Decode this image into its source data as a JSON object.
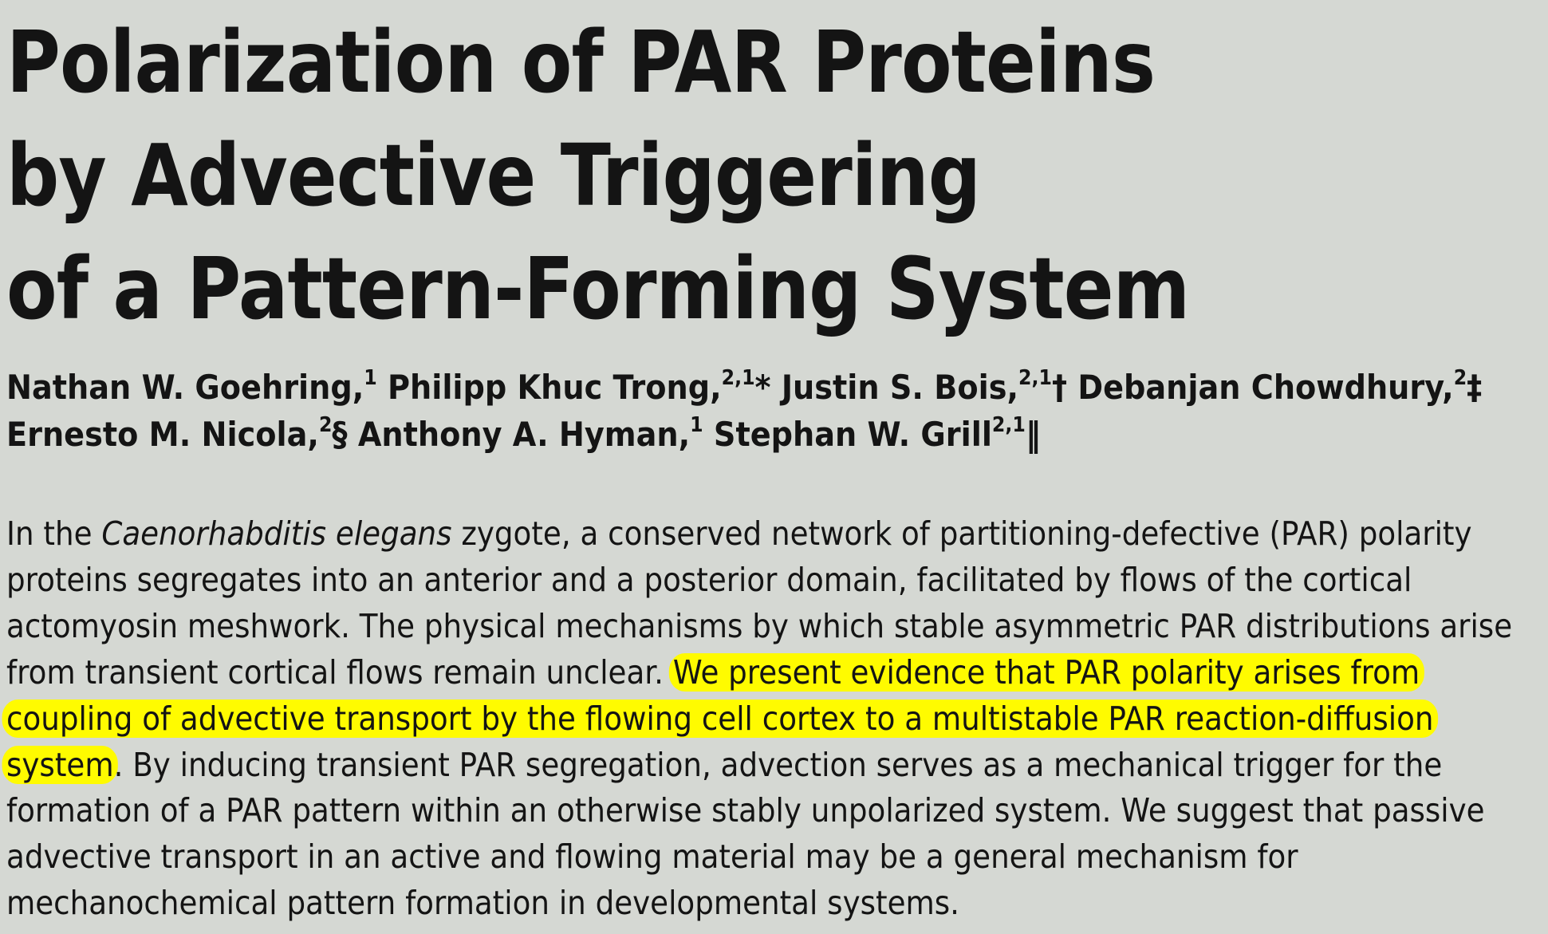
{
  "title": {
    "line1": "Polarization of PAR Proteins",
    "line2": "by Advective Triggering",
    "line3": "of a Pattern-Forming System"
  },
  "authors": [
    {
      "name": "Nathan W. Goehring,",
      "sup": "1",
      "mark": ""
    },
    {
      "name": "Philipp Khuc Trong,",
      "sup": "2,1",
      "mark": "*"
    },
    {
      "name": "Justin S. Bois,",
      "sup": "2,1",
      "mark": "†"
    },
    {
      "name": "Debanjan Chowdhury,",
      "sup": "2",
      "mark": "‡"
    },
    {
      "name": "Ernesto M. Nicola,",
      "sup": "2",
      "mark": "§"
    },
    {
      "name": "Anthony A. Hyman,",
      "sup": "1",
      "mark": ""
    },
    {
      "name": "Stephan W. Grill",
      "sup": "2,1",
      "mark": "‖"
    }
  ],
  "abstract": {
    "line1_a": "In the ",
    "line1_species": "Caenorhabditis elegans",
    "line1_b": " zygote, a conserved network of partitioning-defective (PAR) polarity",
    "line2": "proteins segregates into an anterior and a posterior domain, facilitated by flows of the cortical",
    "line3": "actomyosin meshwork. The physical mechanisms by which stable asymmetric PAR distributions arise",
    "line4_a": "from transient cortical flows remain unclear. ",
    "line4_hl": "We present evidence that PAR polarity arises from",
    "line5_hl": "coupling of advective transport by the flowing cell cortex to a multistable PAR reaction-diffusion",
    "line6_hl": "system",
    "line6_b": ". By inducing transient PAR segregation, advection serves as a mechanical trigger for the",
    "line7": "formation of a PAR pattern within an otherwise stably unpolarized system. We suggest that passive",
    "line8": "advective transport in an active and flowing material may be a general mechanism for",
    "line9": "mechanochemical pattern formation in developmental systems."
  },
  "highlight_color": "#fffb00",
  "background_color": "#d5d8d3"
}
